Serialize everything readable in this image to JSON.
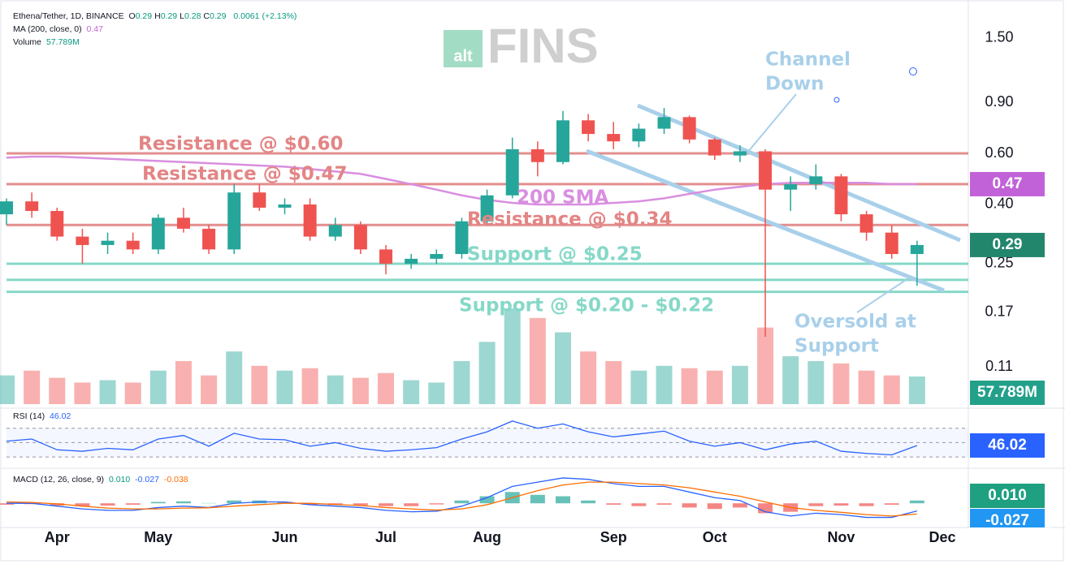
{
  "chart_data": {
    "type": "candlestick",
    "legend": {
      "symbol": "Ethena/Tether, 1D, BINANCE",
      "ohlc_keys": [
        "O",
        "H",
        "L",
        "C"
      ],
      "ohlc": [
        0.29,
        0.29,
        0.28,
        0.29
      ],
      "change": 0.0061,
      "change_pct": "(+2.13%)",
      "ma_name": "MA (200, close, 0)",
      "ma_value": 0.47,
      "volume_name": "Volume",
      "volume_value": {
        "value": 57.789,
        "label": "57.789M"
      }
    },
    "logo": {
      "prefix": "alt",
      "name": "FINS"
    },
    "categories": [
      null,
      null,
      "Apr",
      null,
      null,
      null,
      "May",
      null,
      null,
      null,
      null,
      "Jun",
      null,
      null,
      null,
      "Jul",
      null,
      null,
      null,
      "Aug",
      null,
      null,
      null,
      null,
      "Sep",
      null,
      null,
      null,
      "Oct",
      null,
      null,
      null,
      null,
      "Nov",
      null,
      null,
      null,
      "Dec"
    ],
    "open": [
      0.37,
      0.41,
      0.38,
      0.31,
      0.29,
      0.3,
      0.28,
      0.36,
      0.33,
      0.28,
      0.44,
      0.39,
      0.4,
      0.31,
      0.34,
      0.28,
      0.25,
      0.26,
      0.27,
      0.35,
      0.43,
      0.62,
      0.56,
      0.78,
      0.7,
      0.66,
      0.73,
      0.8,
      0.67,
      0.59,
      0.61,
      0.45,
      0.47,
      0.5,
      0.37,
      0.32,
      0.27,
      null
    ],
    "high": [
      0.42,
      0.44,
      0.39,
      0.33,
      0.32,
      0.32,
      0.37,
      0.39,
      0.34,
      0.47,
      0.47,
      0.42,
      0.42,
      0.36,
      0.35,
      0.29,
      0.27,
      0.28,
      0.36,
      0.45,
      0.68,
      0.66,
      0.84,
      0.82,
      0.77,
      0.76,
      0.86,
      0.81,
      0.68,
      0.64,
      0.62,
      0.5,
      0.55,
      0.51,
      0.38,
      0.34,
      0.3,
      null
    ],
    "low": [
      0.34,
      0.36,
      0.3,
      0.25,
      0.27,
      0.27,
      0.27,
      0.32,
      0.27,
      0.27,
      0.38,
      0.37,
      0.3,
      0.3,
      0.27,
      0.23,
      0.24,
      0.25,
      0.26,
      0.34,
      0.42,
      0.5,
      0.55,
      0.66,
      0.62,
      0.63,
      0.7,
      0.65,
      0.57,
      0.56,
      0.14,
      0.38,
      0.45,
      0.35,
      0.3,
      0.26,
      0.21,
      null
    ],
    "close": [
      0.41,
      0.38,
      0.31,
      0.29,
      0.3,
      0.28,
      0.36,
      0.33,
      0.28,
      0.44,
      0.39,
      0.4,
      0.31,
      0.34,
      0.28,
      0.25,
      0.26,
      0.27,
      0.35,
      0.43,
      0.62,
      0.56,
      0.78,
      0.7,
      0.66,
      0.73,
      0.8,
      0.67,
      0.59,
      0.61,
      0.45,
      0.47,
      0.5,
      0.37,
      0.32,
      0.27,
      0.29,
      null
    ],
    "up_color": "#26a69a",
    "down_color": "#ef5350",
    "ma200": {
      "color": "#d98ee0",
      "values": [
        0.58,
        0.585,
        0.585,
        0.58,
        0.575,
        0.57,
        0.565,
        0.56,
        0.555,
        0.55,
        0.545,
        0.54,
        0.53,
        0.52,
        0.51,
        0.49,
        0.47,
        0.45,
        0.43,
        0.415,
        0.405,
        0.4,
        0.4,
        0.4,
        0.405,
        0.41,
        0.42,
        0.435,
        0.45,
        0.46,
        0.47,
        0.475,
        0.475,
        0.475,
        0.475,
        0.47,
        0.47,
        null
      ]
    },
    "volume": {
      "values": [
        60,
        70,
        55,
        45,
        50,
        45,
        70,
        90,
        60,
        110,
        80,
        70,
        75,
        60,
        55,
        65,
        50,
        45,
        90,
        130,
        200,
        180,
        150,
        110,
        90,
        70,
        80,
        75,
        70,
        80,
        160,
        100,
        90,
        85,
        70,
        60,
        57.789,
        null
      ]
    },
    "ylim": [
      0.081,
      1.9
    ],
    "log_scale": true,
    "yticks": [
      {
        "value": 1.5,
        "label": "1.50"
      },
      {
        "value": 0.9,
        "label": "0.90"
      },
      {
        "value": 0.6,
        "label": "0.60"
      },
      {
        "value": 0.4,
        "label": "0.40"
      },
      0.25,
      0.17,
      0.11
    ],
    "levels": [
      {
        "value": 0.6,
        "color": "#e38e8e"
      },
      {
        "value": 0.47,
        "color": "#e38e8e"
      },
      {
        "value": 0.34,
        "color": "#e38e8e"
      },
      {
        "value": 0.25,
        "color": "#86d8c8"
      },
      {
        "value": 0.22,
        "color": "#86d8c8"
      },
      {
        "value": 0.2,
        "color": "#86d8c8"
      }
    ],
    "annotations": {
      "r60": "Resistance @ $0.60",
      "r47": "Resistance @ $0.47",
      "r34": "Resistance @ $0.34",
      "s25": "Support @ $0.25",
      "s20": "Support @ $0.20 - $0.22",
      "sma": "200 SMA",
      "channel": [
        "Channel",
        "Down"
      ],
      "oversold": [
        "Oversold at",
        "Support"
      ]
    },
    "rsi": {
      "name": "RSI (14)",
      "value": 46.02,
      "color": "#2962ff",
      "ylim": [
        20,
        90
      ],
      "levels": [
        70,
        50,
        30
      ],
      "values": [
        52,
        55,
        40,
        38,
        42,
        40,
        55,
        60,
        45,
        63,
        55,
        54,
        45,
        50,
        42,
        38,
        40,
        43,
        55,
        65,
        80,
        70,
        76,
        65,
        58,
        62,
        66,
        52,
        45,
        50,
        40,
        48,
        52,
        38,
        35,
        33,
        46.02,
        null
      ]
    },
    "macd": {
      "name": "MACD (12, 26, close, 9)",
      "legend": [
        {
          "value": 0.01,
          "label": "0.010"
        },
        {
          "value": -0.027,
          "label": "-0.027"
        },
        {
          "value": -0.038,
          "label": "-0.038"
        }
      ],
      "ylim": [
        -0.08,
        0.11
      ],
      "macd_color": "#2962ff",
      "signal_color": "#ff6d00",
      "hist": [
        -0.005,
        -0.003,
        -0.008,
        -0.01,
        -0.008,
        -0.005,
        0.005,
        0.007,
        0.001,
        0.01,
        0.01,
        0.005,
        -0.005,
        -0.006,
        -0.007,
        -0.01,
        -0.01,
        -0.004,
        0.01,
        0.025,
        0.04,
        0.03,
        0.025,
        0.01,
        -0.005,
        -0.01,
        -0.005,
        -0.015,
        -0.02,
        -0.015,
        -0.035,
        -0.03,
        -0.01,
        -0.008,
        -0.01,
        -0.005,
        0.01,
        null
      ],
      "macd": [
        0.0,
        0.0,
        -0.01,
        -0.02,
        -0.025,
        -0.025,
        -0.015,
        -0.01,
        -0.015,
        0.0,
        0.005,
        0.005,
        -0.005,
        -0.01,
        -0.015,
        -0.025,
        -0.03,
        -0.028,
        -0.01,
        0.02,
        0.06,
        0.075,
        0.09,
        0.085,
        0.07,
        0.06,
        0.06,
        0.04,
        0.02,
        0.01,
        -0.03,
        -0.045,
        -0.035,
        -0.04,
        -0.05,
        -0.05,
        -0.027,
        null
      ],
      "signal": [
        0.005,
        0.003,
        -0.002,
        -0.01,
        -0.017,
        -0.02,
        -0.02,
        -0.017,
        -0.016,
        -0.01,
        -0.005,
        0.0,
        0.0,
        -0.004,
        -0.008,
        -0.015,
        -0.02,
        -0.024,
        -0.02,
        -0.005,
        0.02,
        0.045,
        0.065,
        0.075,
        0.075,
        0.07,
        0.065,
        0.055,
        0.04,
        0.025,
        0.005,
        -0.015,
        -0.025,
        -0.032,
        -0.04,
        -0.045,
        -0.038,
        null
      ]
    }
  }
}
